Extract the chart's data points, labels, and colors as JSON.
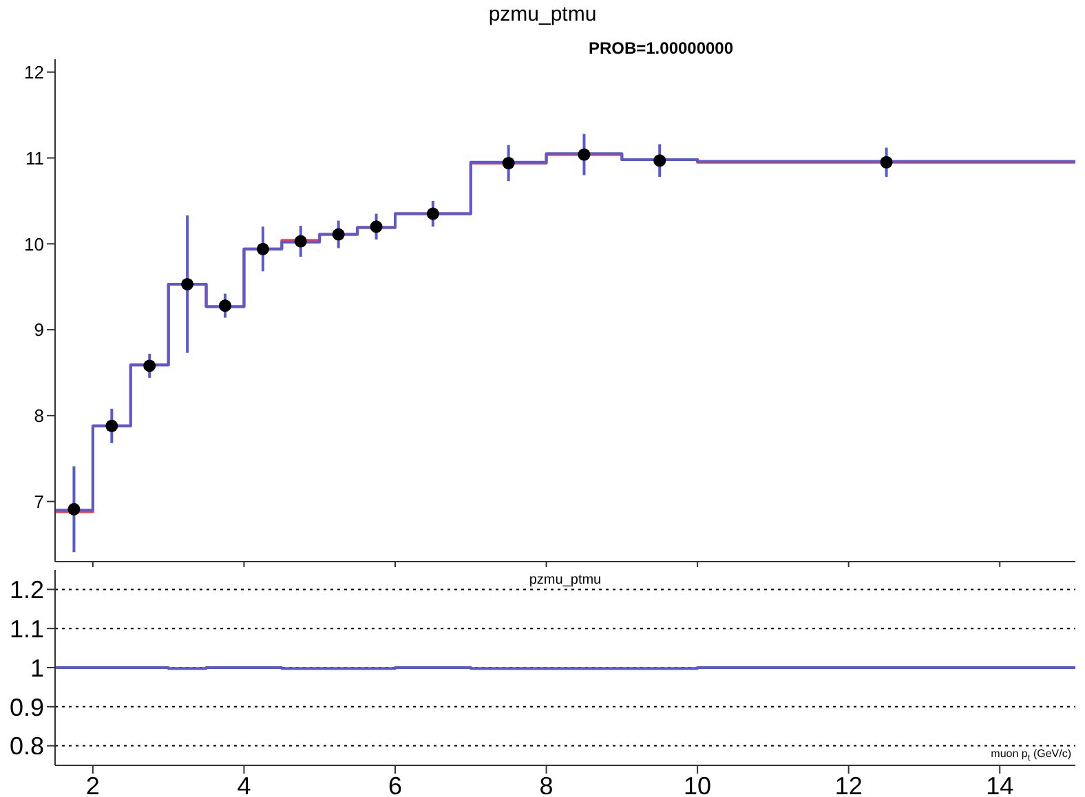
{
  "chart_data": [
    {
      "type": "scatter",
      "title": "pzmu_ptmu",
      "annotations": [
        "PROB=1.00000000"
      ],
      "xlim": [
        1.5,
        15
      ],
      "xticks": [
        2,
        4,
        6,
        8,
        10,
        12,
        14
      ],
      "ylim": [
        6.3,
        12.15
      ],
      "yticks": [
        7,
        8,
        9,
        10,
        11,
        12
      ],
      "tick_labels": "y",
      "marker": "circle",
      "series": [
        {
          "type": "histogram",
          "color": "#ff3b3b",
          "bins": [
            1.5,
            2,
            2.5,
            3,
            3.5,
            4,
            4.5,
            5,
            5.5,
            6,
            7,
            8,
            9,
            10,
            15
          ],
          "values": [
            6.88,
            7.88,
            8.59,
            9.53,
            9.27,
            9.94,
            10.04,
            10.11,
            10.19,
            10.35,
            10.94,
            11.04,
            10.98,
            10.95
          ]
        },
        {
          "type": "histogram",
          "color": "#5a5ad0",
          "bins": [
            1.5,
            2,
            2.5,
            3,
            3.5,
            4,
            4.5,
            5,
            5.5,
            6,
            7,
            8,
            9,
            10,
            15
          ],
          "values": [
            6.9,
            7.88,
            8.59,
            9.53,
            9.27,
            9.94,
            10.02,
            10.11,
            10.19,
            10.35,
            10.95,
            11.05,
            10.98,
            10.96
          ]
        },
        {
          "color": "#000000",
          "x": [
            1.75,
            2.25,
            2.75,
            3.25,
            3.75,
            4.25,
            4.75,
            5.25,
            5.75,
            6.5,
            7.5,
            8.5,
            9.5,
            12.5
          ],
          "values": [
            6.91,
            7.88,
            8.58,
            9.53,
            9.28,
            9.94,
            10.03,
            10.11,
            10.2,
            10.35,
            10.94,
            11.04,
            10.97,
            10.95
          ],
          "errors": [
            0.5,
            0.2,
            0.14,
            0.8,
            0.14,
            0.26,
            0.18,
            0.16,
            0.15,
            0.15,
            0.21,
            0.24,
            0.19,
            0.17
          ]
        }
      ]
    },
    {
      "type": "histogram",
      "title": "pzmu_ptmu",
      "xlabel": "muon p$_{t}$ (GeV/c)",
      "color": "#5a5ad0",
      "bins": [
        1.5,
        2,
        2.5,
        3,
        3.5,
        4,
        4.5,
        5,
        5.5,
        6,
        7,
        8,
        9,
        10,
        15
      ],
      "values": [
        1,
        1,
        1,
        0.998,
        1,
        1,
        0.998,
        0.998,
        0.998,
        1,
        0.998,
        0.998,
        0.998,
        1
      ],
      "xlim": [
        1.5,
        15
      ],
      "xticks": [
        2,
        4,
        6,
        8,
        10,
        12,
        14
      ],
      "ylim": [
        0.75,
        1.25
      ],
      "yticks": [
        0.8,
        0.9,
        1,
        1.1,
        1.2
      ],
      "grid": "y"
    }
  ]
}
